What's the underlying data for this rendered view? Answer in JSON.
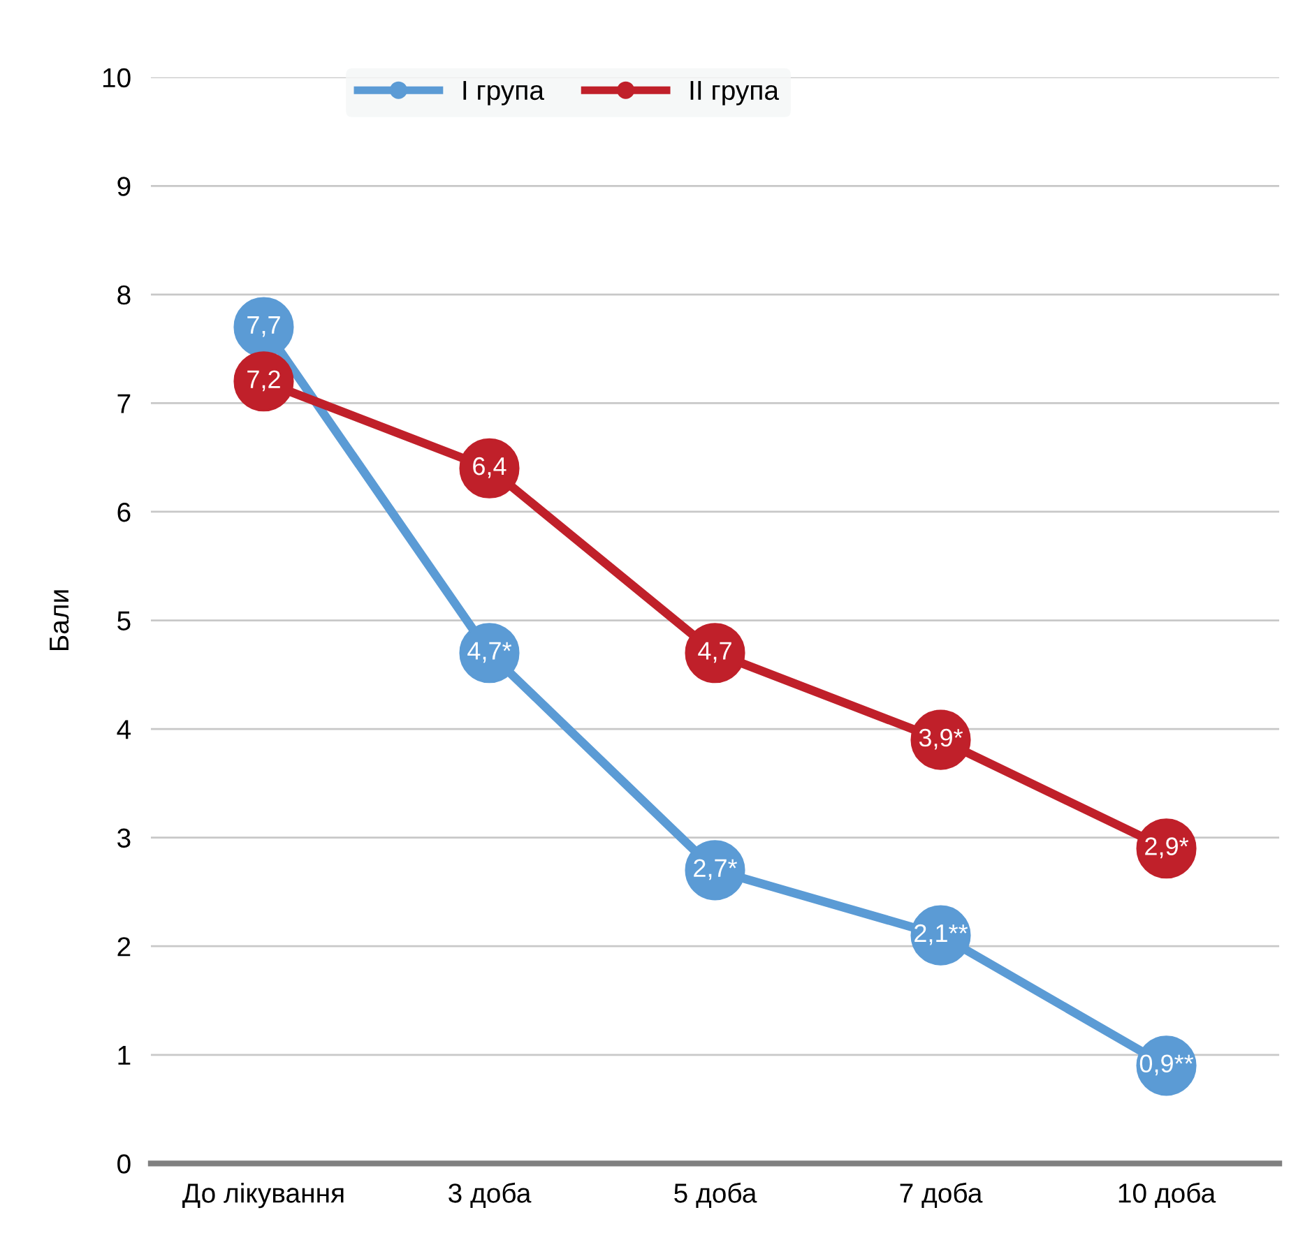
{
  "chart_data": {
    "type": "line",
    "ylabel": "Бали",
    "categories": [
      "До лікування",
      "3 доба",
      "5 доба",
      "7 доба",
      "10 доба"
    ],
    "series": [
      {
        "name": "I група",
        "color": "#5b9bd5",
        "values": [
          7.7,
          4.7,
          2.7,
          2.1,
          0.9
        ],
        "value_labels": [
          "7,7",
          "4,7*",
          "2,7*",
          "2,1**",
          "0,9**"
        ]
      },
      {
        "name": "II група",
        "color": "#c0202a",
        "values": [
          7.2,
          6.4,
          4.7,
          3.9,
          2.9
        ],
        "value_labels": [
          "7,2",
          "6,4",
          "4,7",
          "3,9*",
          "2,9*"
        ]
      }
    ],
    "ylim": [
      0,
      10
    ],
    "yticks": [
      0,
      1,
      2,
      3,
      4,
      5,
      6,
      7,
      8,
      9,
      10
    ],
    "grid": "y",
    "legend": "top",
    "marker": "circle",
    "line_style": "solid"
  }
}
